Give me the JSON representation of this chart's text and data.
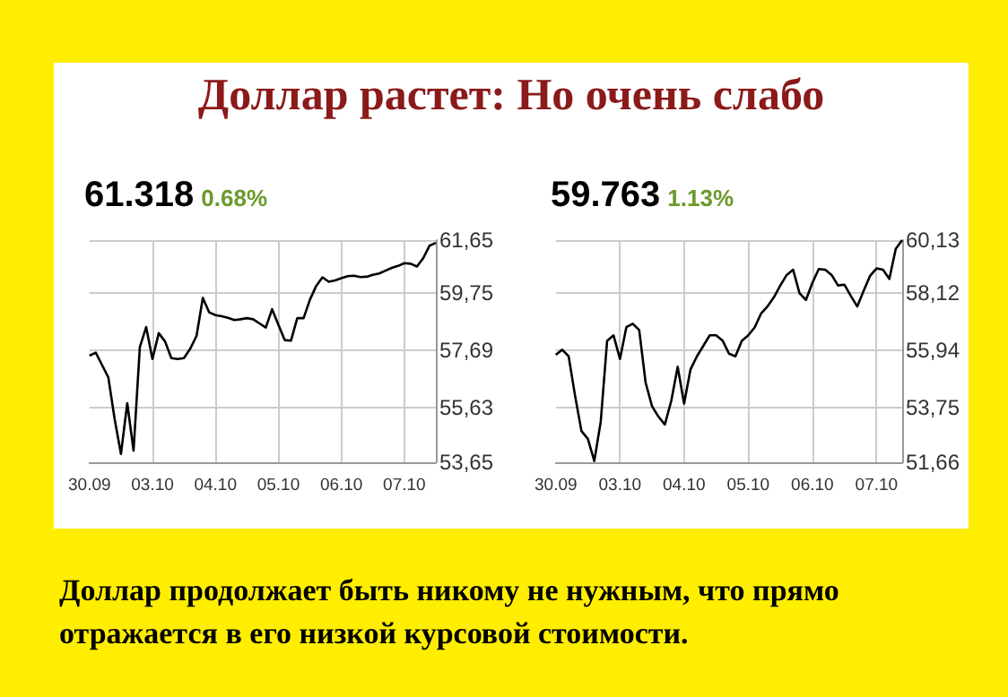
{
  "chart_data": [
    {
      "type": "line",
      "title": "61.318",
      "subtitle": "0.68%",
      "annotations": [
        "Доллар растет: Но очень слабо",
        "Доллар продолжает быть никому не нужным, что прямо отражается в его низкой курсовой стоимости."
      ],
      "categories": [
        "30.09",
        null,
        null,
        null,
        null,
        null,
        null,
        null,
        null,
        null,
        "03.10",
        null,
        null,
        null,
        null,
        null,
        null,
        null,
        null,
        null,
        "04.10",
        null,
        null,
        null,
        null,
        null,
        null,
        null,
        null,
        null,
        "05.10",
        null,
        null,
        null,
        null,
        null,
        null,
        null,
        null,
        null,
        "06.10",
        null,
        null,
        null,
        null,
        null,
        null,
        null,
        null,
        null,
        "07.10",
        null,
        null,
        null,
        null,
        null
      ],
      "series": [
        {
          "color": "#000000",
          "values": [
            57.49,
            57.6,
            57.15,
            56.7,
            55.2,
            53.95,
            55.78,
            54.07,
            57.8,
            58.52,
            57.37,
            58.3,
            58.0,
            57.4,
            57.37,
            57.4,
            57.74,
            58.2,
            59.57,
            59.05,
            58.95,
            58.91,
            58.85,
            58.77,
            58.8,
            58.84,
            58.8,
            58.65,
            58.5,
            59.16,
            58.6,
            58.05,
            58.03,
            58.84,
            58.84,
            59.5,
            60.0,
            60.31,
            60.15,
            60.2,
            60.28,
            60.35,
            60.37,
            60.32,
            60.33,
            60.4,
            60.45,
            60.55,
            60.65,
            60.72,
            60.82,
            60.8,
            60.7,
            61.0,
            61.45,
            61.55
          ]
        }
      ],
      "ylim": [
        53.65,
        61.65
      ],
      "yticks": [
        {
          "value": 53.65,
          "label": "53,65"
        },
        {
          "value": 55.63,
          "label": "55,63"
        },
        {
          "value": 57.69,
          "label": "57,69"
        },
        {
          "value": 59.75,
          "label": "59,75"
        },
        {
          "value": 61.65,
          "label": "61,65"
        }
      ],
      "grid": true,
      "marker": "none"
    },
    {
      "type": "line",
      "title": "59.763",
      "subtitle": "1.13%",
      "categories": [
        "30.09",
        null,
        null,
        null,
        null,
        null,
        null,
        null,
        null,
        null,
        "03.10",
        null,
        null,
        null,
        null,
        null,
        null,
        null,
        null,
        null,
        "04.10",
        null,
        null,
        null,
        null,
        null,
        null,
        null,
        null,
        null,
        "05.10",
        null,
        null,
        null,
        null,
        null,
        null,
        null,
        null,
        null,
        "06.10",
        null,
        null,
        null,
        null,
        null,
        null,
        null,
        null,
        null,
        "07.10",
        null,
        null,
        null,
        null
      ],
      "series": [
        {
          "color": "#000000",
          "values": [
            55.76,
            55.95,
            55.7,
            54.2,
            52.85,
            52.55,
            51.71,
            53.2,
            56.29,
            56.5,
            55.6,
            56.81,
            56.94,
            56.7,
            54.7,
            53.8,
            53.4,
            53.1,
            54.0,
            55.3,
            53.9,
            55.2,
            55.7,
            56.1,
            56.5,
            56.5,
            56.3,
            55.8,
            55.7,
            56.29,
            56.5,
            56.8,
            57.33,
            57.6,
            57.95,
            58.4,
            58.8,
            59.0,
            58.1,
            57.85,
            58.5,
            59.03,
            59.0,
            58.8,
            58.4,
            58.43,
            58.0,
            57.6,
            58.2,
            58.77,
            59.05,
            59.0,
            58.65,
            59.8,
            60.13
          ]
        }
      ],
      "ylim": [
        51.66,
        60.13
      ],
      "yticks": [
        {
          "value": 51.66,
          "label": "51,66"
        },
        {
          "value": 53.75,
          "label": "53,75"
        },
        {
          "value": 55.94,
          "label": "55,94"
        },
        {
          "value": 58.12,
          "label": "58,12"
        },
        {
          "value": 60.13,
          "label": "60,13"
        }
      ],
      "grid": true,
      "marker": "none"
    }
  ]
}
